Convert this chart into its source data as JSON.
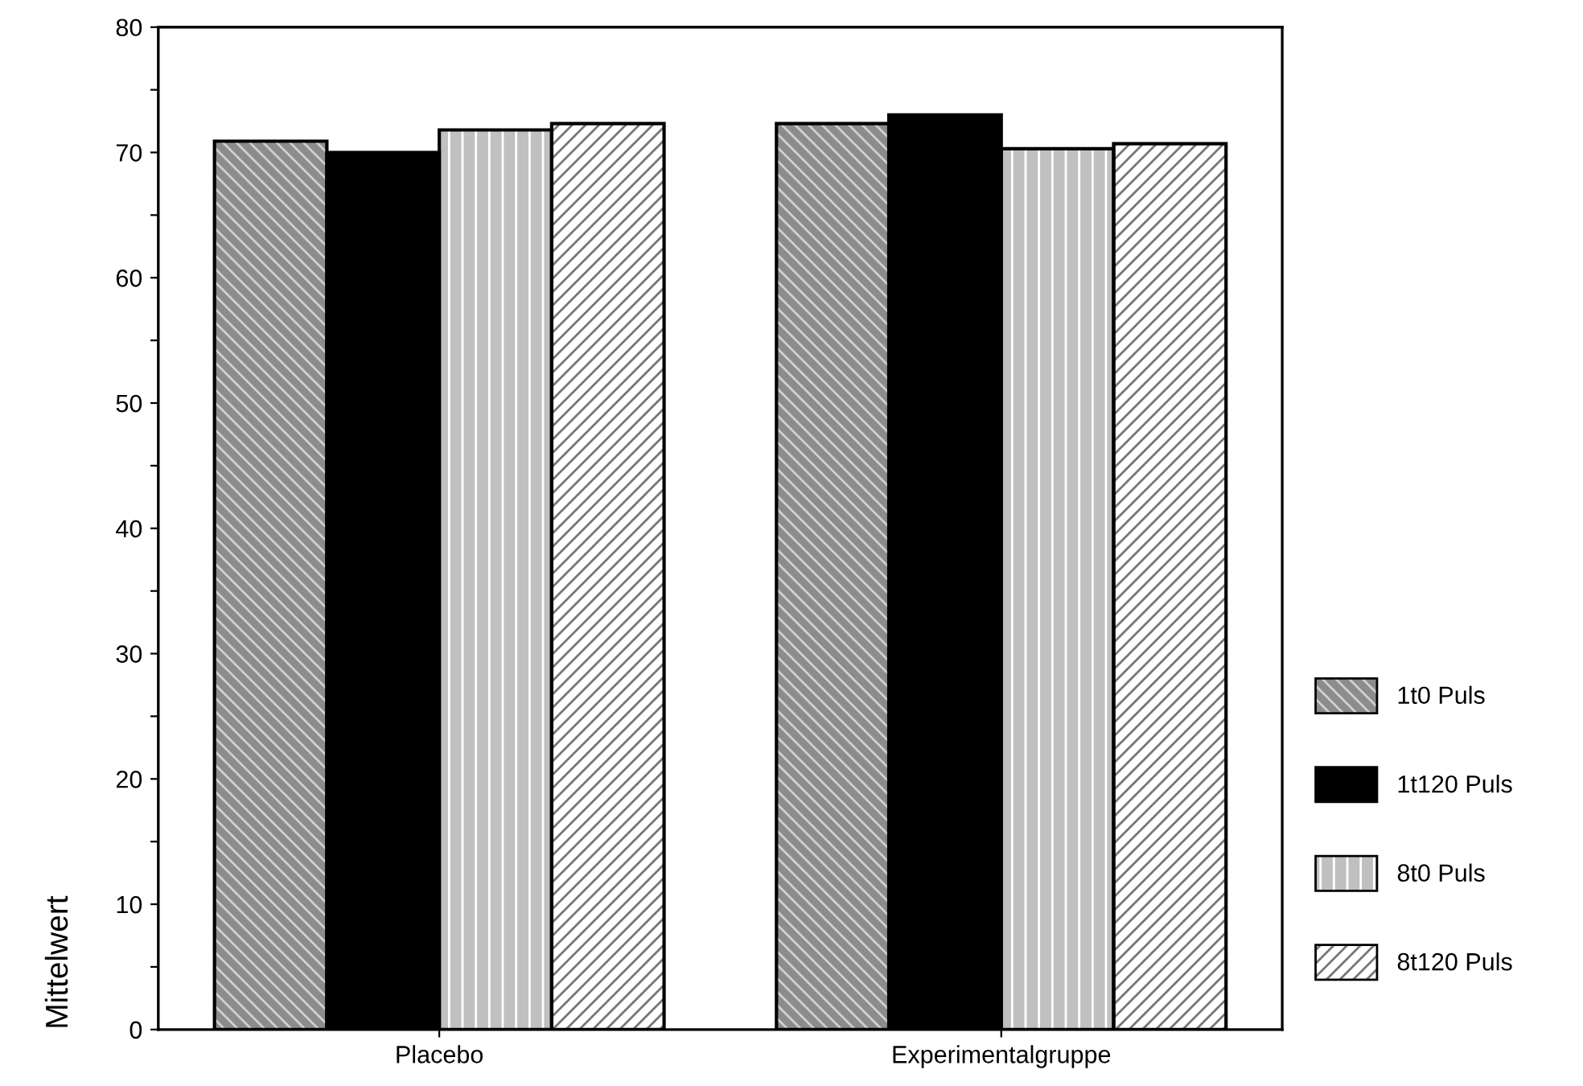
{
  "chart_data": {
    "type": "bar",
    "ylabel": "Mittelwert",
    "categories": [
      "Placebo",
      "Experimentalgruppe"
    ],
    "series": [
      {
        "name": "1t0 Puls",
        "color": "#8c8c8c",
        "values": [
          70.9,
          72.3
        ]
      },
      {
        "name": "1t120 Puls",
        "color": "#000000",
        "values": [
          70.0,
          73.0
        ]
      },
      {
        "name": "8t0 Puls",
        "color": "#c0c0c0",
        "values": [
          71.8,
          70.3
        ]
      },
      {
        "name": "8t120 Puls",
        "color": "#ffffff",
        "values": [
          72.3,
          70.7
        ]
      }
    ],
    "ylim": [
      0,
      80
    ],
    "yticks": [
      0,
      {
        "value": 5,
        "label": null
      },
      10,
      {
        "value": 15,
        "label": null
      },
      20,
      {
        "value": 25,
        "label": null
      },
      30,
      {
        "value": 35,
        "label": null
      },
      40,
      {
        "value": 45,
        "label": null
      },
      50,
      {
        "value": 55,
        "label": null
      },
      60,
      {
        "value": 65,
        "label": null
      },
      70,
      {
        "value": 75,
        "label": null
      },
      80
    ],
    "grid": false,
    "legend": "right"
  }
}
